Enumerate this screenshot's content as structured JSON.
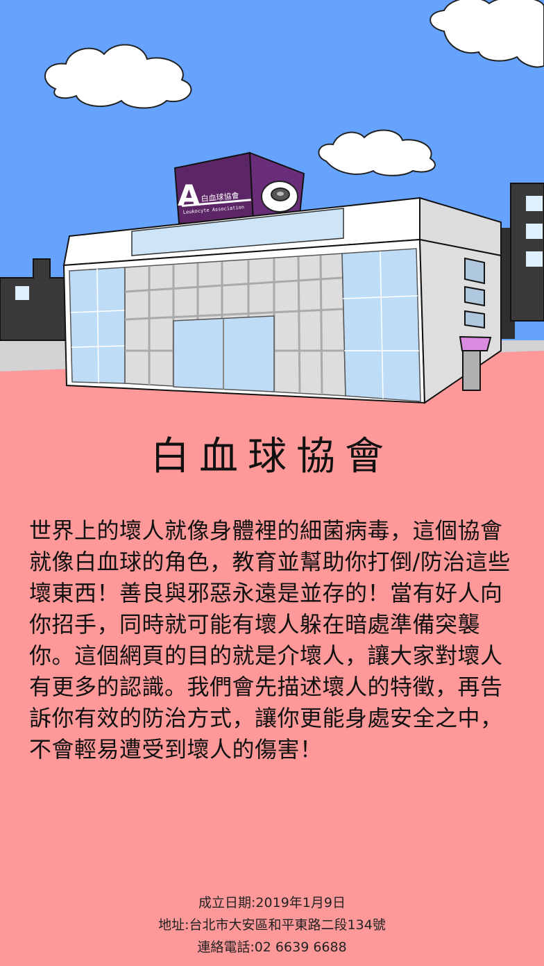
{
  "building_sign": {
    "name": "白血球協會",
    "subtitle": "Leukocyte Association",
    "logo_letter": "A"
  },
  "title": "白血球協會",
  "intro": "世界上的壞人就像身體裡的細菌病毒，這個協會就像白血球的角色，教育並幫助你打倒/防治這些壞東西！善良與邪惡永遠是並存的！當有好人向你招手，同時就可能有壞人躲在暗處準備突襲你。這個網頁的目的就是介壞人，讓大家對壞人有更多的認識。我們會先描述壞人的特徵，再告訴你有效的防治方式，讓你更能身處安全之中，不會輕易遭受到壞人的傷害！",
  "footer": {
    "founded": "成立日期:2019年1月9日",
    "address": "地址:台北市大安區和平東路二段134號",
    "phone": "連絡電話:02 6639 6688"
  },
  "colors": {
    "sky": "#66a3ff",
    "ground": "#ff9999",
    "sign": "#5b2566"
  }
}
